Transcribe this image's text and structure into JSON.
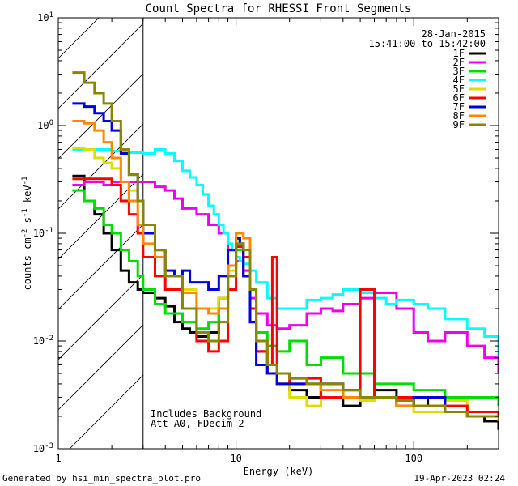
{
  "chart_data": {
    "type": "line",
    "title": "Count Spectra for RHESSI Front Segments",
    "xlabel": "Energy (keV)",
    "ylabel_parts": [
      "counts cm",
      "-2",
      " s",
      "-1",
      " keV",
      "-1"
    ],
    "xscale": "log",
    "yscale": "log",
    "xlim": [
      1,
      300
    ],
    "ylim": [
      0.001,
      10
    ],
    "x_ticks": [
      {
        "value": 1,
        "label": "1"
      },
      {
        "value": 10,
        "label": "10"
      },
      {
        "value": 100,
        "label": "100"
      }
    ],
    "y_ticks": [
      {
        "exp": -3,
        "label_base": "10",
        "label_exp": "-3"
      },
      {
        "exp": -2,
        "label_base": "10",
        "label_exp": "-2"
      },
      {
        "exp": -1,
        "label_base": "10",
        "label_exp": "-1"
      },
      {
        "exp": 0,
        "label_base": "10",
        "label_exp": "0"
      },
      {
        "exp": 1,
        "label_base": "10",
        "label_exp": "1"
      }
    ],
    "hatched_region": {
      "x_from": 1,
      "x_to": 3
    },
    "legend_header": [
      "28-Jan-2015",
      "15:41:00 to 15:42:00"
    ],
    "annotations": [
      "Includes Background",
      "Att A0, FDecim 2"
    ],
    "series": [
      {
        "name": "1F",
        "color": "#000000",
        "x": [
          1.2,
          1.4,
          1.6,
          1.8,
          2,
          2.25,
          2.5,
          2.8,
          3,
          3.5,
          4,
          4.5,
          5,
          5.5,
          6,
          7,
          8,
          9,
          10,
          10.5,
          11,
          12,
          13,
          15,
          17,
          20,
          25,
          30,
          40,
          50,
          60,
          80,
          100,
          120,
          150,
          200,
          250,
          300
        ],
        "y": [
          0.34,
          0.2,
          0.15,
          0.1,
          0.07,
          0.045,
          0.035,
          0.03,
          0.028,
          0.025,
          0.021,
          0.015,
          0.013,
          0.012,
          0.011,
          0.012,
          0.025,
          0.05,
          0.09,
          0.08,
          0.04,
          0.015,
          0.008,
          0.005,
          0.004,
          0.0035,
          0.003,
          0.004,
          0.0025,
          0.003,
          0.0035,
          0.0025,
          0.003,
          0.0025,
          0.0022,
          0.002,
          0.0018,
          0.0015
        ]
      },
      {
        "name": "2F",
        "color": "#ee00ee",
        "x": [
          1.2,
          1.4,
          1.6,
          1.8,
          2,
          2.5,
          3,
          3.5,
          4,
          4.5,
          5,
          6,
          7,
          8,
          9,
          10,
          11,
          12,
          13,
          15,
          17,
          20,
          25,
          30,
          35,
          40,
          50,
          60,
          80,
          100,
          120,
          150,
          200,
          250,
          300
        ],
        "y": [
          0.28,
          0.3,
          0.3,
          0.28,
          0.3,
          0.3,
          0.3,
          0.27,
          0.25,
          0.21,
          0.17,
          0.15,
          0.12,
          0.1,
          0.07,
          0.055,
          0.045,
          0.025,
          0.018,
          0.014,
          0.013,
          0.014,
          0.018,
          0.02,
          0.019,
          0.022,
          0.025,
          0.028,
          0.02,
          0.012,
          0.01,
          0.012,
          0.009,
          0.007,
          0.005
        ]
      },
      {
        "name": "3F",
        "color": "#00dd00",
        "x": [
          1.2,
          1.4,
          1.6,
          1.8,
          2,
          2.25,
          2.5,
          2.8,
          3,
          3.5,
          4,
          5,
          6,
          7,
          8,
          9,
          10,
          11,
          12,
          13,
          15,
          17,
          20,
          25,
          30,
          40,
          50,
          60,
          80,
          100,
          150,
          200,
          300
        ],
        "y": [
          0.25,
          0.2,
          0.17,
          0.12,
          0.1,
          0.07,
          0.055,
          0.04,
          0.03,
          0.022,
          0.018,
          0.015,
          0.013,
          0.015,
          0.02,
          0.04,
          0.07,
          0.06,
          0.03,
          0.012,
          0.009,
          0.008,
          0.01,
          0.006,
          0.007,
          0.005,
          0.005,
          0.004,
          0.004,
          0.0035,
          0.003,
          0.003,
          0.0025
        ]
      },
      {
        "name": "4F",
        "color": "#00ffff",
        "x": [
          1.2,
          1.5,
          2,
          2.5,
          3,
          3.5,
          4,
          4.5,
          5,
          5.5,
          6,
          6.5,
          7,
          7.5,
          8,
          8.5,
          9,
          9.5,
          10,
          10.5,
          11,
          12,
          13,
          15,
          17,
          20,
          25,
          30,
          35,
          40,
          50,
          60,
          70,
          80,
          100,
          120,
          150,
          200,
          250,
          300
        ],
        "y": [
          0.6,
          0.6,
          0.58,
          0.56,
          0.55,
          0.6,
          0.55,
          0.47,
          0.38,
          0.33,
          0.28,
          0.23,
          0.18,
          0.15,
          0.12,
          0.1,
          0.08,
          0.07,
          0.06,
          0.055,
          0.052,
          0.045,
          0.035,
          0.025,
          0.02,
          0.02,
          0.024,
          0.025,
          0.027,
          0.03,
          0.028,
          0.025,
          0.022,
          0.024,
          0.022,
          0.02,
          0.016,
          0.013,
          0.011,
          0.007
        ]
      },
      {
        "name": "5F",
        "color": "#dddd00",
        "x": [
          1.2,
          1.4,
          1.6,
          1.8,
          2,
          2.25,
          2.5,
          2.8,
          3,
          3.5,
          4,
          5,
          6,
          7,
          8,
          9,
          10,
          11,
          12,
          13,
          15,
          17,
          20,
          25,
          30,
          40,
          50,
          60,
          80,
          100,
          150,
          200,
          300
        ],
        "y": [
          0.62,
          0.6,
          0.5,
          0.45,
          0.4,
          0.3,
          0.25,
          0.2,
          0.12,
          0.07,
          0.04,
          0.03,
          0.02,
          0.02,
          0.025,
          0.045,
          0.08,
          0.07,
          0.03,
          0.01,
          0.005,
          0.004,
          0.003,
          0.0025,
          0.004,
          0.003,
          0.0028,
          0.003,
          0.0025,
          0.0022,
          0.0028,
          0.002,
          0.0018
        ]
      },
      {
        "name": "6F",
        "color": "#ff0000",
        "x": [
          1.2,
          1.4,
          1.6,
          1.8,
          2,
          2.25,
          2.5,
          2.8,
          3,
          3.5,
          4,
          5,
          6,
          7,
          8,
          9,
          10,
          11,
          12,
          13,
          15,
          16,
          17,
          20,
          25,
          30,
          40,
          50,
          60,
          80,
          100,
          150,
          200,
          300
        ],
        "y": [
          0.32,
          0.32,
          0.32,
          0.32,
          0.28,
          0.2,
          0.15,
          0.1,
          0.06,
          0.04,
          0.03,
          0.02,
          0.01,
          0.008,
          0.01,
          0.03,
          0.075,
          0.06,
          0.02,
          0.008,
          0.006,
          0.06,
          0.005,
          0.004,
          0.0045,
          0.003,
          0.0035,
          0.03,
          0.003,
          0.003,
          0.0025,
          0.0025,
          0.0022,
          0.002
        ]
      },
      {
        "name": "7F",
        "color": "#0000dd",
        "x": [
          1.2,
          1.4,
          1.6,
          1.8,
          2,
          2.25,
          2.5,
          2.8,
          3,
          3.5,
          4,
          4.5,
          5,
          5.5,
          6,
          7,
          8,
          9,
          10,
          10.5,
          11,
          12,
          13,
          15,
          17,
          20,
          25,
          30,
          40,
          50,
          60,
          80,
          100,
          150,
          200,
          300
        ],
        "y": [
          1.6,
          1.5,
          1.3,
          1.1,
          0.9,
          0.55,
          0.35,
          0.2,
          0.1,
          0.07,
          0.045,
          0.04,
          0.045,
          0.035,
          0.035,
          0.03,
          0.04,
          0.07,
          0.09,
          0.08,
          0.04,
          0.015,
          0.006,
          0.005,
          0.004,
          0.004,
          0.004,
          0.004,
          0.0035,
          0.003,
          0.003,
          0.0025,
          0.003,
          0.0022,
          0.002,
          0.002
        ]
      },
      {
        "name": "8F",
        "color": "#ff8800",
        "x": [
          1.2,
          1.4,
          1.6,
          1.8,
          2,
          2.25,
          2.5,
          2.8,
          3,
          3.5,
          4,
          5,
          6,
          7,
          8,
          9,
          10,
          11,
          12,
          13,
          15,
          17,
          20,
          25,
          30,
          40,
          50,
          60,
          80,
          100,
          150,
          200,
          300
        ],
        "y": [
          1.1,
          1.05,
          0.9,
          0.7,
          0.5,
          0.3,
          0.2,
          0.12,
          0.08,
          0.06,
          0.04,
          0.028,
          0.02,
          0.018,
          0.02,
          0.05,
          0.1,
          0.09,
          0.03,
          0.01,
          0.006,
          0.005,
          0.0045,
          0.004,
          0.0035,
          0.003,
          0.003,
          0.003,
          0.0025,
          0.0025,
          0.0022,
          0.002,
          0.002
        ]
      },
      {
        "name": "9F",
        "color": "#888800",
        "x": [
          1.2,
          1.4,
          1.6,
          1.8,
          2,
          2.25,
          2.5,
          2.8,
          3,
          3.5,
          4,
          5,
          6,
          7,
          8,
          9,
          10,
          11,
          12,
          13,
          15,
          17,
          20,
          25,
          30,
          40,
          50,
          60,
          80,
          100,
          150,
          200,
          300
        ],
        "y": [
          3.1,
          2.5,
          2.0,
          1.6,
          1.1,
          0.6,
          0.35,
          0.2,
          0.12,
          0.07,
          0.04,
          0.02,
          0.012,
          0.01,
          0.015,
          0.04,
          0.08,
          0.07,
          0.03,
          0.01,
          0.006,
          0.005,
          0.0045,
          0.004,
          0.004,
          0.0035,
          0.003,
          0.003,
          0.0028,
          0.0025,
          0.0022,
          0.002,
          0.002
        ]
      }
    ]
  },
  "footer": {
    "generated_by": "Generated by hsi_min_spectra_plot.pro",
    "date": "19-Apr-2023 02:24"
  }
}
